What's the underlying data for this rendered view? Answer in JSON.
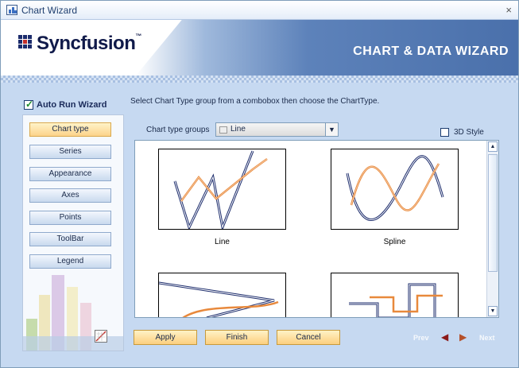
{
  "window": {
    "title": "Chart Wizard",
    "close_icon": "×"
  },
  "header": {
    "brand": "Syncfusion",
    "trademark": "™",
    "wizard_title": "CHART & DATA WIZARD"
  },
  "auto_run": {
    "label": "Auto Run Wizard",
    "checked": true
  },
  "instruction": "Select Chart Type group from a combobox then choose the ChartType.",
  "sidebar": {
    "items": [
      {
        "label": "Chart type",
        "active": true
      },
      {
        "label": "Series",
        "active": false
      },
      {
        "label": "Appearance",
        "active": false
      },
      {
        "label": "Axes",
        "active": false
      },
      {
        "label": "Points",
        "active": false
      },
      {
        "label": "ToolBar",
        "active": false
      },
      {
        "label": "Legend",
        "active": false
      }
    ]
  },
  "chart_type_groups": {
    "label": "Chart type groups",
    "selected": "Line"
  },
  "style_3d": {
    "label": "3D Style",
    "checked": false
  },
  "gallery": {
    "items": [
      {
        "label": "Line"
      },
      {
        "label": "Spline"
      },
      {
        "label": ""
      },
      {
        "label": ""
      }
    ]
  },
  "buttons": {
    "apply": "Apply",
    "finish": "Finish",
    "cancel": "Cancel"
  },
  "navigation": {
    "prev": "Prev",
    "next": "Next"
  },
  "colors": {
    "accent": "#4a70ab",
    "series_dark": "#1c2c6c",
    "series_orange": "#e8893c",
    "button_active": "#fcd38a"
  }
}
